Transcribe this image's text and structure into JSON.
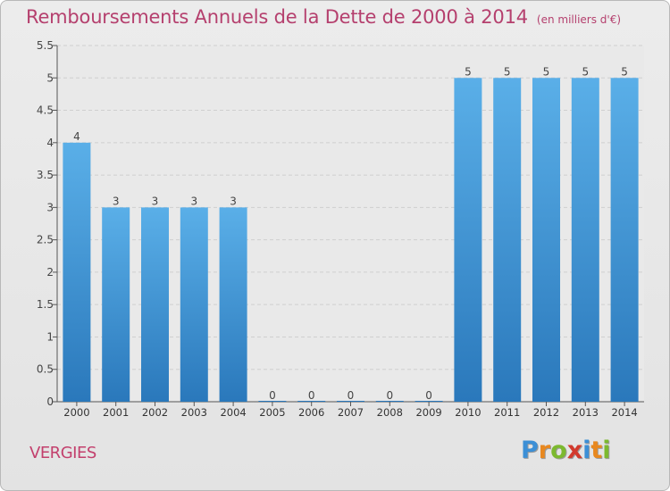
{
  "header": {
    "title": "Remboursements Annuels de la Dette de 2000 à 2014",
    "subtitle": "(en milliers d'€)"
  },
  "footer": {
    "commune": "VERGIES",
    "brand": "Proxiti",
    "brand_letters": [
      "P",
      "r",
      "o",
      "x",
      "i",
      "t",
      "i"
    ],
    "brand_colors": [
      "#3c8fd6",
      "#e8881f",
      "#7cb92f",
      "#d23a2d",
      "#3c8fd6",
      "#e8881f",
      "#7cb92f"
    ]
  },
  "colors": {
    "bar_light": "#5aafe8",
    "bar_dark": "#2a78bb",
    "title": "#b5406e",
    "grid": "#cfcfcf"
  },
  "chart_data": {
    "type": "bar",
    "title": "Remboursements Annuels de la Dette de 2000 à 2014",
    "subtitle": "(en milliers d'€)",
    "xlabel": "",
    "ylabel": "",
    "categories": [
      "2000",
      "2001",
      "2002",
      "2003",
      "2004",
      "2005",
      "2006",
      "2007",
      "2008",
      "2009",
      "2010",
      "2011",
      "2012",
      "2013",
      "2014"
    ],
    "values": [
      4,
      3,
      3,
      3,
      3,
      0,
      0,
      0,
      0,
      0,
      5,
      5,
      5,
      5,
      5
    ],
    "data_labels": [
      "4",
      "3",
      "3",
      "3",
      "3",
      "0",
      "0",
      "0",
      "0",
      "0",
      "5",
      "5",
      "5",
      "5",
      "5"
    ],
    "ylim": [
      0,
      5.5
    ],
    "yticks": [
      0,
      0.5,
      1,
      1.5,
      2,
      2.5,
      3,
      3.5,
      4,
      4.5,
      5,
      5.5
    ],
    "ytick_labels": [
      "0",
      "0.5",
      "1",
      "1.5",
      "2",
      "2.5",
      "3",
      "3.5",
      "4",
      "4.5",
      "5",
      "5.5"
    ],
    "grid": true
  }
}
